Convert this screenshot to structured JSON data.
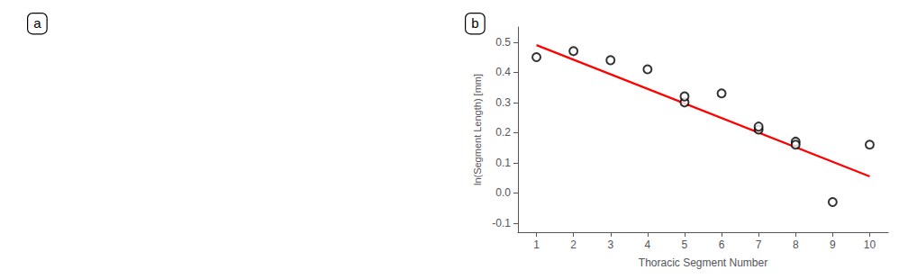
{
  "chart_data": {
    "type": "scatter",
    "xlabel": "Thoracic Segment Number",
    "ylabel": "ln(Segment Length) [mm]",
    "annotations": [
      "a",
      "b"
    ],
    "series": [
      {
        "type": "scatter",
        "color": "black",
        "marker": "emptyCircle",
        "x": [
          1,
          2,
          3,
          4,
          5,
          5,
          6,
          7,
          7,
          8,
          8,
          9,
          10
        ],
        "values": [
          0.45,
          0.47,
          0.44,
          0.41,
          0.3,
          0.32,
          0.33,
          0.21,
          0.22,
          0.17,
          0.16,
          -0.03,
          0.16
        ]
      },
      {
        "type": "line",
        "color": "red",
        "line_style": "solid",
        "x": [
          1,
          10
        ],
        "values": [
          0.49,
          0.055
        ]
      }
    ],
    "xlim": [
      0.5,
      10.5
    ],
    "ylim": [
      -0.13,
      0.55
    ],
    "xticks": [
      1,
      2,
      3,
      4,
      5,
      6,
      7,
      8,
      9,
      10
    ],
    "yticks": [
      -0.1,
      {
        "value": 0,
        "label": "0.0"
      },
      0.1,
      0.2,
      0.3,
      0.4,
      0.5
    ],
    "grid": false
  }
}
